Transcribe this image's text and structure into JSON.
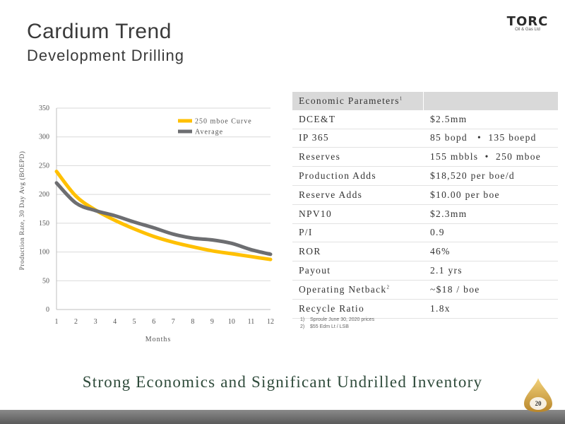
{
  "header": {
    "title": "Cardium Trend",
    "subtitle": "Development Drilling"
  },
  "logo": {
    "word": "TORC",
    "tagline": "Oil & Gas Ltd"
  },
  "chart_data": {
    "type": "line",
    "x": [
      1,
      2,
      3,
      4,
      5,
      6,
      7,
      8,
      9,
      10,
      11,
      12
    ],
    "series": [
      {
        "name": "250 mboe Curve",
        "color": "#FFC000",
        "values": [
          240,
          197,
          173,
          155,
          140,
          127,
          117,
          109,
          102,
          97,
          92,
          87
        ]
      },
      {
        "name": "Average",
        "color": "#6D6E71",
        "values": [
          220,
          185,
          172,
          163,
          152,
          142,
          131,
          124,
          121,
          115,
          104,
          96
        ]
      }
    ],
    "xlabel": "Months",
    "ylabel": "Production Rate, 30 Day Avg (BOEPD)",
    "xlim": [
      1,
      12
    ],
    "ylim": [
      0,
      350
    ],
    "yticks": [
      0,
      50,
      100,
      150,
      200,
      250,
      300,
      350
    ],
    "xticks": [
      1,
      2,
      3,
      4,
      5,
      6,
      7,
      8,
      9,
      10,
      11,
      12
    ],
    "grid": "horizontal",
    "legend_position": "top-right"
  },
  "table": {
    "header": "Economic Parameters",
    "header_sup": "1",
    "rows": [
      {
        "label": "DCE&T",
        "sup": "",
        "value": "$2.5mm"
      },
      {
        "label": "IP 365",
        "sup": "",
        "value": "85 bopd   •  135 boepd"
      },
      {
        "label": "Reserves",
        "sup": "",
        "value": "155 mbbls  •  250 mboe"
      },
      {
        "label": "Production Adds",
        "sup": "",
        "value": "$18,520 per boe/d"
      },
      {
        "label": "Reserve Adds",
        "sup": "",
        "value": "$10.00 per boe"
      },
      {
        "label": "NPV10",
        "sup": "",
        "value": "$2.3mm"
      },
      {
        "label": "P/I",
        "sup": "",
        "value": "0.9"
      },
      {
        "label": "ROR",
        "sup": "",
        "value": "46%"
      },
      {
        "label": "Payout",
        "sup": "",
        "value": "2.1 yrs"
      },
      {
        "label": "Operating Netback",
        "sup": "2",
        "value": "~$18 / boe"
      },
      {
        "label": "Recycle Ratio",
        "sup": "",
        "value": "1.8x"
      }
    ]
  },
  "notes": [
    "1)    Sproule June 30, 2020 prices",
    "2)    $55 Edm Lt / LSB"
  ],
  "tagline": "Strong Economics and Significant Undrilled Inventory",
  "page_number": "20",
  "colors": {
    "accent": "#FFC000",
    "text": "#3a3a3a",
    "tagline": "#2e4a3a",
    "footer": "#6a6a6a"
  }
}
